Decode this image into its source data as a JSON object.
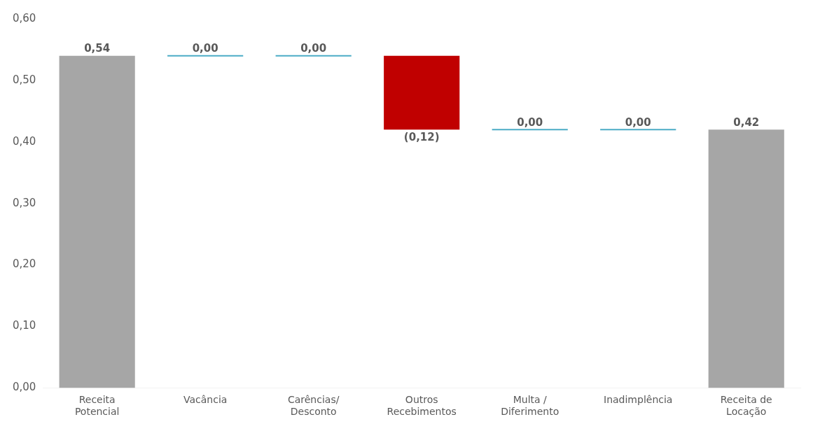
{
  "chart_data": {
    "type": "bar",
    "categories": [
      "Receita Potencial",
      "Vacância",
      "Carências/ Desconto",
      "Outros Recebimentos",
      "Multa / Diferimento",
      "Inadimplência",
      "Receita de Locação"
    ],
    "values": [
      0.54,
      0,
      0,
      -0.12,
      0,
      0,
      0.42
    ],
    "base": [
      0,
      0.54,
      0.54,
      0.54,
      0.42,
      0.42,
      0
    ],
    "colors": [
      "#a6a6a6",
      "#4bacc6",
      "#4bacc6",
      "#c00000",
      "#4bacc6",
      "#4bacc6",
      "#a6a6a6"
    ],
    "value_labels": [
      "0,54",
      "0,00",
      "0,00",
      "(0,12)",
      "0,00",
      "0,00",
      "0,42"
    ],
    "ylim": [
      0,
      0.6
    ],
    "yticks": [
      {
        "value": 0,
        "label": "0,00"
      },
      {
        "value": 0.1,
        "label": "0,10"
      },
      {
        "value": 0.2,
        "label": "0,20"
      },
      {
        "value": 0.3,
        "label": "0,30"
      },
      {
        "value": 0.4,
        "label": "0,40"
      },
      {
        "value": 0.5,
        "label": "0,50"
      },
      {
        "value": 0.6,
        "label": "0,60"
      }
    ],
    "grid": false,
    "legend": false
  }
}
